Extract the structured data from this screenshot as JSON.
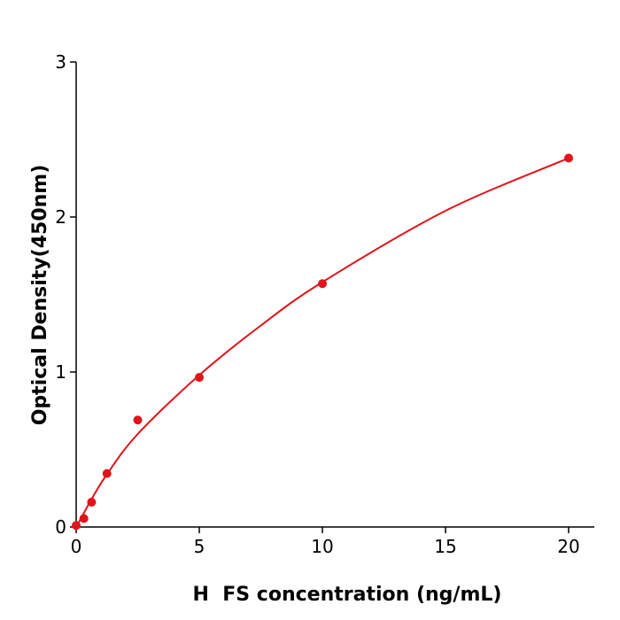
{
  "chart_data": {
    "type": "scatter",
    "title": "",
    "xlabel": "H  FS concentration (ng/mL)",
    "ylabel": "Optical Density(450nm)",
    "xlim": [
      0,
      21
    ],
    "ylim": [
      0,
      3
    ],
    "xticks": [
      "0",
      "5",
      "10",
      "15",
      "20"
    ],
    "yticks": [
      "0",
      "1",
      "2",
      "3"
    ],
    "grid": false,
    "color": "#e0141a",
    "points": {
      "x": [
        0,
        0.3125,
        0.625,
        1.25,
        2.5,
        5,
        10,
        20
      ],
      "y": [
        0.01,
        0.055,
        0.16,
        0.345,
        0.69,
        0.965,
        1.57,
        2.38
      ]
    },
    "fit_curve": {
      "x": [
        0,
        0.3125,
        0.625,
        1.25,
        2.5,
        5,
        7.5,
        10,
        15,
        20
      ],
      "y": [
        0,
        0.09,
        0.18,
        0.34,
        0.6,
        0.98,
        1.3,
        1.58,
        2.04,
        2.38
      ]
    }
  }
}
